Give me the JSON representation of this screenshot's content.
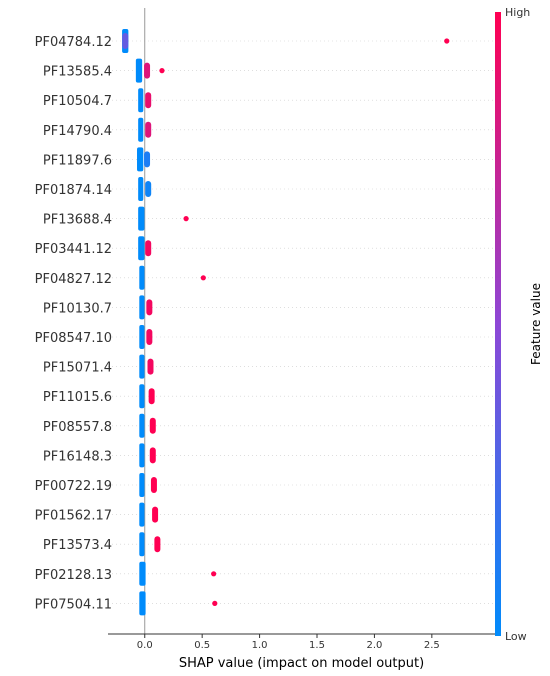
{
  "chart_data": {
    "type": "scatter",
    "subtype": "shap-beeswarm",
    "xlabel": "SHAP value (impact on model output)",
    "xlim": [
      -0.32,
      3.05
    ],
    "xticks": [
      "0.0",
      "0.5",
      "1.0",
      "1.5",
      "2.0",
      "2.5"
    ],
    "xtick_values": [
      0.0,
      0.5,
      1.0,
      1.5,
      2.0,
      2.5
    ],
    "grid": false,
    "colorbar": {
      "title": "Feature value",
      "high_label": "High",
      "low_label": "Low",
      "low_color": "#008bfb",
      "high_color": "#ff0052"
    },
    "features": [
      {
        "name": "PF04784.12",
        "low_range": [
          -0.18,
          -0.16
        ],
        "points": [
          {
            "x": 2.63,
            "v": 1.0
          },
          {
            "x": -0.17,
            "v": 0.35
          }
        ]
      },
      {
        "name": "PF13585.4",
        "low_range": [
          -0.06,
          -0.04
        ],
        "points": [
          {
            "x": 0.15,
            "v": 1.0
          },
          {
            "x": 0.02,
            "v": 0.85
          }
        ]
      },
      {
        "name": "PF10504.7",
        "low_range": [
          -0.04,
          -0.03
        ],
        "points": [
          {
            "x": 0.03,
            "v": 0.9
          }
        ]
      },
      {
        "name": "PF14790.4",
        "low_range": [
          -0.04,
          -0.03
        ],
        "points": [
          {
            "x": 0.03,
            "v": 0.85
          }
        ]
      },
      {
        "name": "PF11897.6",
        "low_range": [
          -0.05,
          -0.03
        ],
        "points": [
          {
            "x": 0.02,
            "v": 0.1
          }
        ]
      },
      {
        "name": "PF01874.14",
        "low_range": [
          -0.04,
          -0.03
        ],
        "points": [
          {
            "x": 0.03,
            "v": 0.05
          }
        ]
      },
      {
        "name": "PF13688.4",
        "low_range": [
          -0.04,
          -0.02
        ],
        "points": [
          {
            "x": 0.36,
            "v": 1.0
          }
        ]
      },
      {
        "name": "PF03441.12",
        "low_range": [
          -0.04,
          -0.02
        ],
        "points": [
          {
            "x": 0.03,
            "v": 0.95
          }
        ]
      },
      {
        "name": "PF04827.12",
        "low_range": [
          -0.03,
          -0.02
        ],
        "points": [
          {
            "x": 0.51,
            "v": 1.0
          }
        ]
      },
      {
        "name": "PF10130.7",
        "low_range": [
          -0.03,
          -0.02
        ],
        "points": [
          {
            "x": 0.04,
            "v": 0.95
          }
        ]
      },
      {
        "name": "PF08547.10",
        "low_range": [
          -0.03,
          -0.02
        ],
        "points": [
          {
            "x": 0.04,
            "v": 0.95
          }
        ]
      },
      {
        "name": "PF15071.4",
        "low_range": [
          -0.03,
          -0.02
        ],
        "points": [
          {
            "x": 0.05,
            "v": 0.95
          }
        ]
      },
      {
        "name": "PF11015.6",
        "low_range": [
          -0.03,
          -0.02
        ],
        "points": [
          {
            "x": 0.06,
            "v": 1.0
          }
        ]
      },
      {
        "name": "PF08557.8",
        "low_range": [
          -0.03,
          -0.02
        ],
        "points": [
          {
            "x": 0.07,
            "v": 1.0
          }
        ]
      },
      {
        "name": "PF16148.3",
        "low_range": [
          -0.03,
          -0.02
        ],
        "points": [
          {
            "x": 0.07,
            "v": 1.0
          }
        ]
      },
      {
        "name": "PF00722.19",
        "low_range": [
          -0.03,
          -0.02
        ],
        "points": [
          {
            "x": 0.08,
            "v": 1.0
          }
        ]
      },
      {
        "name": "PF01562.17",
        "low_range": [
          -0.03,
          -0.02
        ],
        "points": [
          {
            "x": 0.09,
            "v": 1.0
          }
        ]
      },
      {
        "name": "PF13573.4",
        "low_range": [
          -0.03,
          -0.02
        ],
        "points": [
          {
            "x": 0.11,
            "v": 1.0
          }
        ]
      },
      {
        "name": "PF02128.13",
        "low_range": [
          -0.03,
          -0.01
        ],
        "points": [
          {
            "x": 0.6,
            "v": 1.0
          }
        ]
      },
      {
        "name": "PF07504.11",
        "low_range": [
          -0.03,
          -0.01
        ],
        "points": [
          {
            "x": 0.61,
            "v": 1.0
          }
        ]
      }
    ]
  }
}
